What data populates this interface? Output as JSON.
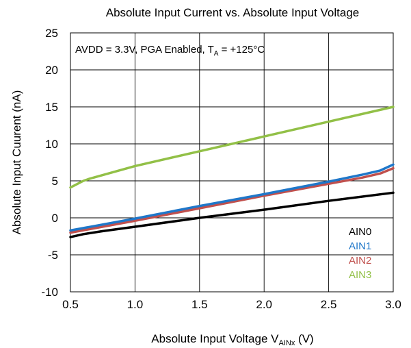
{
  "chart_data": {
    "type": "line",
    "title": "Absolute Input Current vs. Absolute Input Voltage",
    "xlabel": {
      "main": "Absolute Input Voltage V",
      "sub": "AINx",
      "tail": " (V)"
    },
    "ylabel": "Absolute Input Cuurent (nA)",
    "annotation": {
      "main": "AVDD = 3.3V, PGA Enabled, T",
      "sub": "A",
      "tail": " = +125°C"
    },
    "xlim": [
      0.5,
      3.0
    ],
    "ylim": [
      -10,
      25
    ],
    "x_ticks": [
      0.5,
      1.0,
      1.5,
      2.0,
      2.5,
      3.0
    ],
    "x_tick_labels": [
      "0.5",
      "1.0",
      "1.5",
      "2.0",
      "2.5",
      "3.0"
    ],
    "y_ticks": [
      -10,
      -5,
      0,
      5,
      10,
      15,
      20,
      25
    ],
    "y_tick_labels": [
      "-10",
      "-5",
      "0",
      "5",
      "10",
      "15",
      "20",
      "25"
    ],
    "grid": true,
    "legend_position": "bottom-right",
    "series": [
      {
        "name": "AIN0",
        "color": "#000000",
        "x": [
          0.5,
          0.6,
          0.75,
          1.0,
          1.5,
          2.0,
          2.5,
          3.0
        ],
        "y": [
          -2.6,
          -2.2,
          -1.8,
          -1.2,
          0.0,
          1.1,
          2.3,
          3.4
        ]
      },
      {
        "name": "AIN1",
        "color": "#1f77c9",
        "x": [
          0.5,
          1.0,
          1.5,
          2.0,
          2.5,
          2.75,
          2.9,
          3.0
        ],
        "y": [
          -1.7,
          -0.1,
          1.6,
          3.2,
          4.9,
          5.8,
          6.4,
          7.2
        ]
      },
      {
        "name": "AIN2",
        "color": "#c0504d",
        "x": [
          0.5,
          1.0,
          1.5,
          2.0,
          2.5,
          2.75,
          2.9,
          3.0
        ],
        "y": [
          -2.0,
          -0.4,
          1.3,
          3.0,
          4.6,
          5.4,
          6.0,
          6.7
        ]
      },
      {
        "name": "AIN3",
        "color": "#92c047",
        "x": [
          0.5,
          0.6,
          0.65,
          1.0,
          1.5,
          2.0,
          2.5,
          3.0
        ],
        "y": [
          4.1,
          5.0,
          5.3,
          7.0,
          9.0,
          11.0,
          13.0,
          15.0
        ]
      }
    ]
  }
}
